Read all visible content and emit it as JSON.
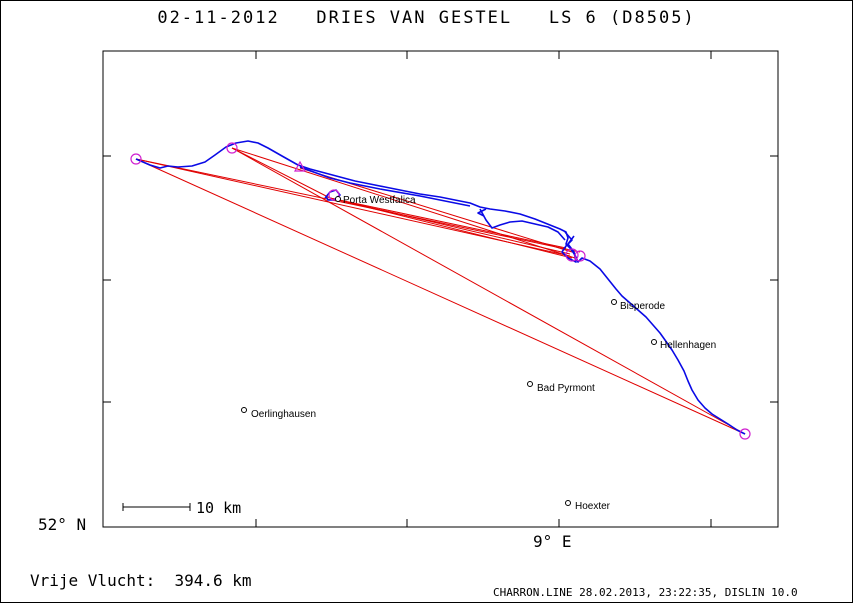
{
  "title": "02-11-2012   DRIES VAN GESTEL   LS 6 (D8505)",
  "axis": {
    "lat_label": "52° N",
    "lon_label": "9° E"
  },
  "scale_bar": {
    "label": "10 km"
  },
  "flight": {
    "distance_label": "Vrije Vlucht:  394.6 km"
  },
  "footer": "CHARRON.LINE 28.02.2013, 23:22:35, DISLIN 10.0",
  "places": [
    {
      "name": "Porta Westfalica"
    },
    {
      "name": "Bisperode"
    },
    {
      "name": "Hellenhagen"
    },
    {
      "name": "Bad Pyrmont"
    },
    {
      "name": "Oerlinghausen"
    },
    {
      "name": "Hoexter"
    }
  ],
  "colors": {
    "track": "#0a0ae6",
    "task": "#e00000",
    "turnpoint": "#d020d0",
    "frame": "#000000"
  }
}
